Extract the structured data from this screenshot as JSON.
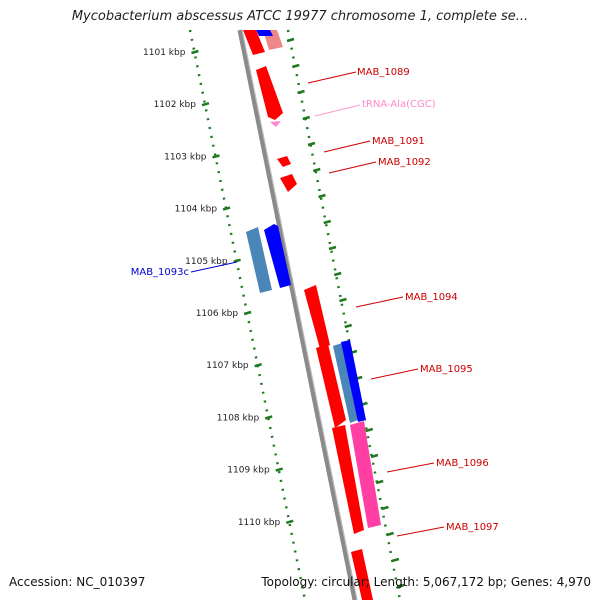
{
  "header": {
    "title": "Mycobacterium abscessus ATCC 19977 chromosome 1, complete se..."
  },
  "footer": {
    "accession": "Accession: NC_010397",
    "summary": "Topology: circular; Length: 5,067,172 bp; Genes: 4,970"
  },
  "colors": {
    "backbone": "#8a8a8a",
    "forward_gene": "#ff0000",
    "reverse_gene": "#0000ff",
    "trna": "#ff88cc",
    "pseudo_pink": "#ff3fa4",
    "steel_blue": "#4a86b8",
    "tick_green": "#1f7a1f",
    "label_red": "#cc0000",
    "label_blue": "#0000cc"
  },
  "ruler": {
    "ticks": [
      {
        "label": "1101 kbp"
      },
      {
        "label": "1102 kbp"
      },
      {
        "label": "1103 kbp"
      },
      {
        "label": "1104 kbp"
      },
      {
        "label": "1105 kbp"
      },
      {
        "label": "1106 kbp"
      },
      {
        "label": "1107 kbp"
      },
      {
        "label": "1108 kbp"
      },
      {
        "label": "1109 kbp"
      },
      {
        "label": "1110 kbp"
      }
    ]
  },
  "genes": [
    {
      "name": "MAB_1089",
      "strand": "+",
      "color": "forward_gene"
    },
    {
      "name": "tRNA-Ala(CGC)",
      "strand": "+",
      "color": "trna"
    },
    {
      "name": "MAB_1091",
      "strand": "+",
      "color": "forward_gene"
    },
    {
      "name": "MAB_1092",
      "strand": "+",
      "color": "forward_gene"
    },
    {
      "name": "MAB_1093c",
      "strand": "-",
      "color": "reverse_gene"
    },
    {
      "name": "MAB_1094",
      "strand": "+",
      "color": "forward_gene"
    },
    {
      "name": "MAB_1095",
      "strand": "+",
      "color": "reverse_gene"
    },
    {
      "name": "MAB_1096",
      "strand": "+",
      "color": "pseudo_pink"
    },
    {
      "name": "MAB_1097",
      "strand": "+",
      "color": "forward_gene"
    }
  ]
}
